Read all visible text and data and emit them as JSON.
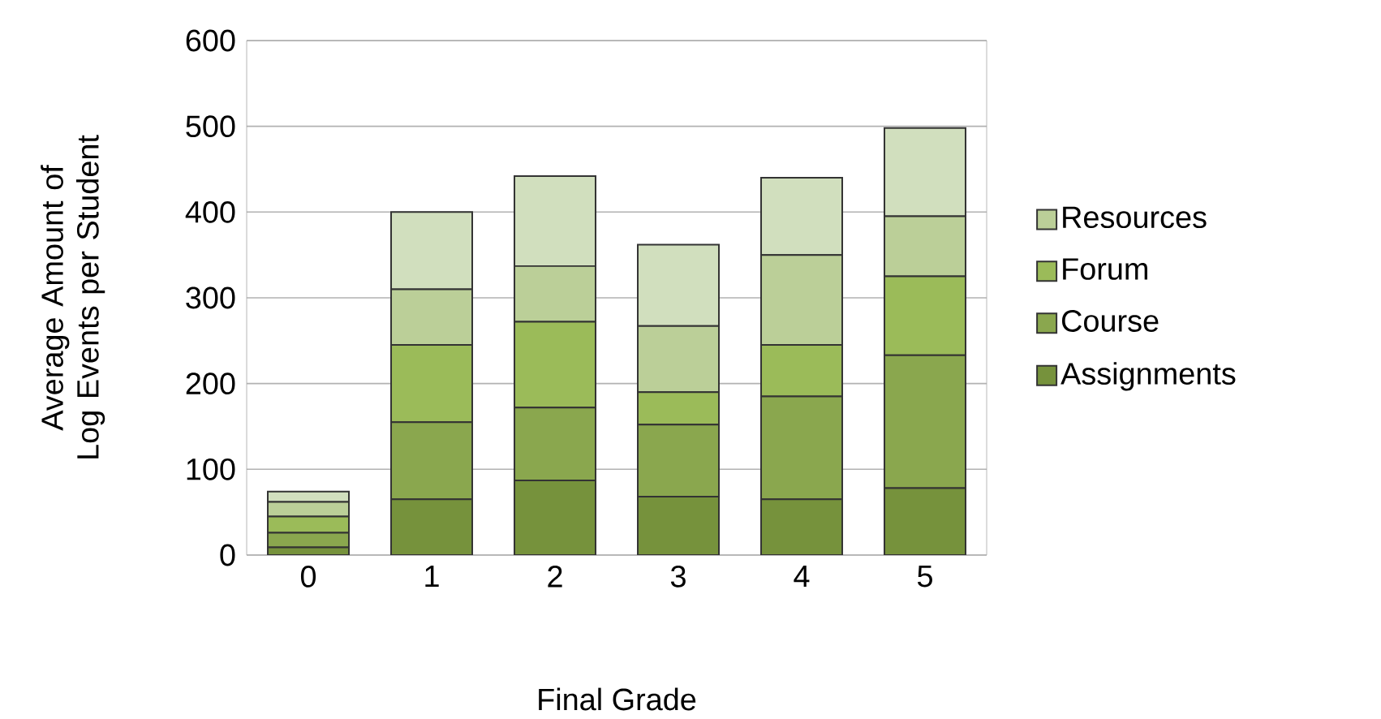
{
  "chart_data": {
    "type": "bar",
    "stacked": true,
    "xlabel": "Final Grade",
    "ylabel": "Average Amount of Log Events per Student",
    "categories": [
      "0",
      "1",
      "2",
      "3",
      "4",
      "5"
    ],
    "series": [
      {
        "name": "Assignments",
        "color": "#76923c",
        "values": [
          9,
          65,
          87,
          68,
          65,
          78
        ]
      },
      {
        "name": "Course",
        "color": "#8aa74e",
        "values": [
          17,
          90,
          85,
          84,
          120,
          155
        ]
      },
      {
        "name": "Forum",
        "color": "#9bbb59",
        "values": [
          19,
          90,
          100,
          38,
          60,
          92
        ]
      },
      {
        "name": "Resources",
        "color": "#bbcf98",
        "values": [
          17,
          65,
          65,
          77,
          105,
          70
        ]
      },
      {
        "color": "#d1dfbe",
        "values": [
          12,
          90,
          105,
          95,
          90,
          103
        ]
      }
    ],
    "ylim": [
      0,
      600
    ],
    "yticks": [
      0,
      100,
      200,
      300,
      400,
      500,
      600
    ],
    "grid": "y",
    "legend": "right"
  }
}
